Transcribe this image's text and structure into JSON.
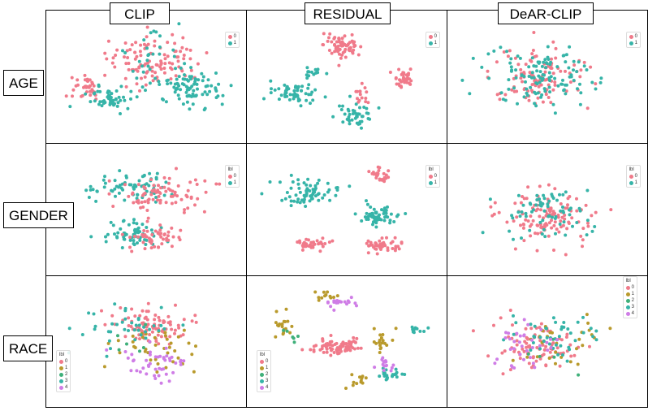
{
  "columns": [
    "CLIP",
    "RESIDUAL",
    "DeAR-CLIP"
  ],
  "rows": [
    "AGE",
    "GENDER",
    "RACE"
  ],
  "colors": {
    "binary": [
      "#f07a8a",
      "#36b4a8"
    ],
    "race": [
      "#f07a8a",
      "#b99a2c",
      "#3fb07a",
      "#36b4a8",
      "#cf7de6"
    ]
  },
  "chart_data": [
    {
      "type": "scatter",
      "panel": "CLIP-AGE",
      "legend_title": "",
      "legend_entries": [
        "0",
        "1"
      ],
      "legend": "top-right",
      "clusters": [
        {
          "label": 0,
          "cx": 0.55,
          "cy": 0.35,
          "sx": 0.25,
          "sy": 0.2,
          "n": 110
        },
        {
          "label": 0,
          "cx": 0.15,
          "cy": 0.6,
          "sx": 0.08,
          "sy": 0.12,
          "n": 35
        },
        {
          "label": 1,
          "cx": 0.3,
          "cy": 0.7,
          "sx": 0.12,
          "sy": 0.1,
          "n": 55
        },
        {
          "label": 1,
          "cx": 0.75,
          "cy": 0.6,
          "sx": 0.16,
          "sy": 0.15,
          "n": 90
        },
        {
          "label": 1,
          "cx": 0.5,
          "cy": 0.3,
          "sx": 0.15,
          "sy": 0.2,
          "n": 25
        }
      ]
    },
    {
      "type": "scatter",
      "panel": "RESIDUAL-AGE",
      "legend_title": "",
      "legend_entries": [
        "0",
        "1"
      ],
      "legend": "top-right",
      "clusters": [
        {
          "label": 0,
          "cx": 0.48,
          "cy": 0.22,
          "sx": 0.1,
          "sy": 0.1,
          "n": 70
        },
        {
          "label": 0,
          "cx": 0.82,
          "cy": 0.5,
          "sx": 0.05,
          "sy": 0.08,
          "n": 35
        },
        {
          "label": 0,
          "cx": 0.58,
          "cy": 0.65,
          "sx": 0.05,
          "sy": 0.1,
          "n": 15
        },
        {
          "label": 1,
          "cx": 0.22,
          "cy": 0.65,
          "sx": 0.12,
          "sy": 0.08,
          "n": 55
        },
        {
          "label": 1,
          "cx": 0.55,
          "cy": 0.85,
          "sx": 0.1,
          "sy": 0.08,
          "n": 45
        },
        {
          "label": 1,
          "cx": 0.3,
          "cy": 0.45,
          "sx": 0.05,
          "sy": 0.05,
          "n": 15
        }
      ]
    },
    {
      "type": "scatter",
      "panel": "DeAR-CLIP-AGE",
      "legend_title": "",
      "legend_entries": [
        "0",
        "1"
      ],
      "legend": "top-right",
      "clusters": [
        {
          "label": 0,
          "cx": 0.45,
          "cy": 0.5,
          "sx": 0.25,
          "sy": 0.25,
          "n": 110
        },
        {
          "label": 1,
          "cx": 0.45,
          "cy": 0.5,
          "sx": 0.27,
          "sy": 0.25,
          "n": 120
        }
      ]
    },
    {
      "type": "scatter",
      "panel": "CLIP-GENDER",
      "legend_title": "lbl",
      "legend_entries": [
        "0",
        "1"
      ],
      "legend": "top-right",
      "clusters": [
        {
          "label": 1,
          "cx": 0.4,
          "cy": 0.3,
          "sx": 0.2,
          "sy": 0.12,
          "n": 70
        },
        {
          "label": 0,
          "cx": 0.6,
          "cy": 0.35,
          "sx": 0.25,
          "sy": 0.15,
          "n": 80
        },
        {
          "label": 1,
          "cx": 0.42,
          "cy": 0.72,
          "sx": 0.14,
          "sy": 0.1,
          "n": 60
        },
        {
          "label": 0,
          "cx": 0.55,
          "cy": 0.75,
          "sx": 0.15,
          "sy": 0.1,
          "n": 50
        }
      ]
    },
    {
      "type": "scatter",
      "panel": "RESIDUAL-GENDER",
      "legend_title": "lbl",
      "legend_entries": [
        "0",
        "1"
      ],
      "legend": "top-right",
      "clusters": [
        {
          "label": 1,
          "cx": 0.3,
          "cy": 0.35,
          "sx": 0.15,
          "sy": 0.1,
          "n": 70
        },
        {
          "label": 1,
          "cx": 0.68,
          "cy": 0.55,
          "sx": 0.1,
          "sy": 0.08,
          "n": 55
        },
        {
          "label": 0,
          "cx": 0.68,
          "cy": 0.2,
          "sx": 0.05,
          "sy": 0.06,
          "n": 25
        },
        {
          "label": 0,
          "cx": 0.3,
          "cy": 0.8,
          "sx": 0.08,
          "sy": 0.05,
          "n": 35
        },
        {
          "label": 0,
          "cx": 0.7,
          "cy": 0.82,
          "sx": 0.12,
          "sy": 0.05,
          "n": 45
        }
      ]
    },
    {
      "type": "scatter",
      "panel": "DeAR-CLIP-GENDER",
      "legend_title": "lbl",
      "legend_entries": [
        "0",
        "1"
      ],
      "legend": "top-right",
      "clusters": [
        {
          "label": 0,
          "cx": 0.5,
          "cy": 0.55,
          "sx": 0.22,
          "sy": 0.22,
          "n": 120
        },
        {
          "label": 1,
          "cx": 0.5,
          "cy": 0.55,
          "sx": 0.22,
          "sy": 0.22,
          "n": 70
        }
      ]
    },
    {
      "type": "scatter",
      "panel": "CLIP-RACE",
      "legend_title": "lbl",
      "legend_entries": [
        "0",
        "1",
        "2",
        "3",
        "4"
      ],
      "legend": "bottom-left",
      "clusters": [
        {
          "label": 0,
          "cx": 0.5,
          "cy": 0.35,
          "sx": 0.18,
          "sy": 0.15,
          "n": 90
        },
        {
          "label": 1,
          "cx": 0.55,
          "cy": 0.55,
          "sx": 0.2,
          "sy": 0.2,
          "n": 40
        },
        {
          "label": 2,
          "cx": 0.4,
          "cy": 0.4,
          "sx": 0.2,
          "sy": 0.2,
          "n": 6
        },
        {
          "label": 3,
          "cx": 0.4,
          "cy": 0.4,
          "sx": 0.25,
          "sy": 0.2,
          "n": 40
        },
        {
          "label": 4,
          "cx": 0.55,
          "cy": 0.7,
          "sx": 0.15,
          "sy": 0.15,
          "n": 45
        }
      ]
    },
    {
      "type": "scatter",
      "panel": "RESIDUAL-RACE",
      "legend_title": "lbl",
      "legend_entries": [
        "0",
        "1",
        "2",
        "3",
        "4"
      ],
      "legend": "bottom-left",
      "clusters": [
        {
          "label": 0,
          "cx": 0.45,
          "cy": 0.55,
          "sx": 0.14,
          "sy": 0.08,
          "n": 75
        },
        {
          "label": 1,
          "cx": 0.15,
          "cy": 0.35,
          "sx": 0.05,
          "sy": 0.1,
          "n": 20
        },
        {
          "label": 1,
          "cx": 0.7,
          "cy": 0.5,
          "sx": 0.05,
          "sy": 0.1,
          "n": 18
        },
        {
          "label": 1,
          "cx": 0.57,
          "cy": 0.85,
          "sx": 0.04,
          "sy": 0.06,
          "n": 12
        },
        {
          "label": 1,
          "cx": 0.38,
          "cy": 0.1,
          "sx": 0.08,
          "sy": 0.05,
          "n": 12
        },
        {
          "label": 2,
          "cx": 0.2,
          "cy": 0.45,
          "sx": 0.06,
          "sy": 0.06,
          "n": 6
        },
        {
          "label": 3,
          "cx": 0.75,
          "cy": 0.8,
          "sx": 0.08,
          "sy": 0.05,
          "n": 25
        },
        {
          "label": 3,
          "cx": 0.9,
          "cy": 0.4,
          "sx": 0.04,
          "sy": 0.05,
          "n": 10
        },
        {
          "label": 4,
          "cx": 0.45,
          "cy": 0.15,
          "sx": 0.08,
          "sy": 0.05,
          "n": 20
        },
        {
          "label": 4,
          "cx": 0.72,
          "cy": 0.72,
          "sx": 0.05,
          "sy": 0.05,
          "n": 15
        }
      ]
    },
    {
      "type": "scatter",
      "panel": "DeAR-CLIP-RACE",
      "legend_title": "lbl",
      "legend_entries": [
        "0",
        "1",
        "2",
        "3",
        "4"
      ],
      "legend": "top-right",
      "clusters": [
        {
          "label": 0,
          "cx": 0.42,
          "cy": 0.55,
          "sx": 0.22,
          "sy": 0.2,
          "n": 90
        },
        {
          "label": 1,
          "cx": 0.6,
          "cy": 0.5,
          "sx": 0.22,
          "sy": 0.2,
          "n": 30
        },
        {
          "label": 2,
          "cx": 0.5,
          "cy": 0.5,
          "sx": 0.2,
          "sy": 0.2,
          "n": 6
        },
        {
          "label": 3,
          "cx": 0.55,
          "cy": 0.45,
          "sx": 0.22,
          "sy": 0.2,
          "n": 45
        },
        {
          "label": 4,
          "cx": 0.35,
          "cy": 0.55,
          "sx": 0.15,
          "sy": 0.2,
          "n": 35
        }
      ]
    }
  ]
}
